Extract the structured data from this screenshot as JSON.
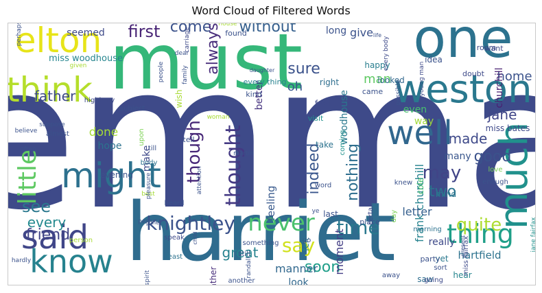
{
  "chart_data": {
    "type": "wordcloud",
    "title": "Word Cloud of Filtered Words",
    "colormap": "viridis",
    "words": [
      {
        "text": "emma",
        "weight": 1.0,
        "color": "#3e4a89",
        "rotate": false
      },
      {
        "text": "harriet",
        "weight": 0.64,
        "color": "#2f6c8e",
        "rotate": false
      },
      {
        "text": "must",
        "weight": 0.6,
        "color": "#35b779",
        "rotate": false
      },
      {
        "text": "one",
        "weight": 0.42,
        "color": "#2c728e",
        "rotate": false
      },
      {
        "text": "weston",
        "weight": 0.36,
        "color": "#2a788e",
        "rotate": false
      },
      {
        "text": "much",
        "weight": 0.34,
        "color": "#21918c",
        "rotate": true
      },
      {
        "text": "elton",
        "weight": 0.3,
        "color": "#e7e419",
        "rotate": false
      },
      {
        "text": "think",
        "weight": 0.3,
        "color": "#b5de2b",
        "rotate": false
      },
      {
        "text": "know",
        "weight": 0.3,
        "color": "#26828e",
        "rotate": false
      },
      {
        "text": "said",
        "weight": 0.28,
        "color": "#404688",
        "rotate": false
      },
      {
        "text": "might",
        "weight": 0.27,
        "color": "#2d718e",
        "rotate": false
      },
      {
        "text": "well",
        "weight": 0.25,
        "color": "#31678e",
        "rotate": false
      },
      {
        "text": "little",
        "weight": 0.24,
        "color": "#5ec962",
        "rotate": true
      },
      {
        "text": "thing",
        "weight": 0.2,
        "color": "#1f9f88",
        "rotate": false
      },
      {
        "text": "never",
        "weight": 0.2,
        "color": "#4ac16d",
        "rotate": false
      },
      {
        "text": "time",
        "weight": 0.18,
        "color": "#2a788e",
        "rotate": false
      },
      {
        "text": "quite",
        "weight": 0.17,
        "color": "#addc30",
        "rotate": false
      },
      {
        "text": "knightley",
        "weight": 0.16,
        "color": "#3b528b",
        "rotate": false
      },
      {
        "text": "thought",
        "weight": 0.15,
        "color": "#443983",
        "rotate": true
      },
      {
        "text": "though",
        "weight": 0.15,
        "color": "#482878",
        "rotate": true
      },
      {
        "text": "good",
        "weight": 0.15,
        "color": "#3b528b",
        "rotate": false
      },
      {
        "text": "say",
        "weight": 0.15,
        "color": "#d0e11c",
        "rotate": false
      },
      {
        "text": "may",
        "weight": 0.14,
        "color": "#414487",
        "rotate": false
      },
      {
        "text": "first",
        "weight": 0.13,
        "color": "#482475",
        "rotate": false
      },
      {
        "text": "without",
        "weight": 0.13,
        "color": "#355f8d",
        "rotate": false
      },
      {
        "text": "come",
        "weight": 0.13,
        "color": "#3b528b",
        "rotate": false
      },
      {
        "text": "always",
        "weight": 0.13,
        "color": "#472c7a",
        "rotate": true
      },
      {
        "text": "indeed",
        "weight": 0.12,
        "color": "#39568c",
        "rotate": true
      },
      {
        "text": "nothing",
        "weight": 0.12,
        "color": "#2e6e8e",
        "rotate": true
      },
      {
        "text": "father",
        "weight": 0.12,
        "color": "#3e4a89",
        "rotate": false
      },
      {
        "text": "see",
        "weight": 0.12,
        "color": "#2a788e",
        "rotate": false
      },
      {
        "text": "friend",
        "weight": 0.12,
        "color": "#414487",
        "rotate": false
      },
      {
        "text": "every",
        "weight": 0.11,
        "color": "#23898e",
        "rotate": false
      },
      {
        "text": "soon",
        "weight": 0.11,
        "color": "#1f9e89",
        "rotate": false
      },
      {
        "text": "sure",
        "weight": 0.11,
        "color": "#3b528b",
        "rotate": false
      },
      {
        "text": "jane",
        "weight": 0.1,
        "color": "#404688",
        "rotate": false
      },
      {
        "text": "made",
        "weight": 0.1,
        "color": "#3e4989",
        "rotate": false
      },
      {
        "text": "great",
        "weight": 0.1,
        "color": "#26828e",
        "rotate": false
      },
      {
        "text": "frank churchill",
        "weight": 0.09,
        "color": "#26828e",
        "rotate": true
      },
      {
        "text": "moment",
        "weight": 0.09,
        "color": "#433e85",
        "rotate": true
      },
      {
        "text": "feeling",
        "weight": 0.08,
        "color": "#38598c",
        "rotate": true
      },
      {
        "text": "miss woodhouse",
        "weight": 0.08,
        "color": "#25858e",
        "rotate": false
      },
      {
        "text": "seemed",
        "weight": 0.08,
        "color": "#3e4a89",
        "rotate": false
      },
      {
        "text": "two",
        "weight": 0.09,
        "color": "#2c728e",
        "rotate": false
      },
      {
        "text": "home",
        "weight": 0.08,
        "color": "#3b528b",
        "rotate": false
      },
      {
        "text": "letter",
        "weight": 0.08,
        "color": "#355f8d",
        "rotate": false
      },
      {
        "text": "hartfield",
        "weight": 0.07,
        "color": "#2c728e",
        "rotate": false
      },
      {
        "text": "really",
        "weight": 0.07,
        "color": "#3e4a89",
        "rotate": false
      },
      {
        "text": "manner",
        "weight": 0.07,
        "color": "#31688e",
        "rotate": false
      },
      {
        "text": "hope",
        "weight": 0.07,
        "color": "#2c728e",
        "rotate": false
      },
      {
        "text": "done",
        "weight": 0.07,
        "color": "#a5db36",
        "rotate": false
      },
      {
        "text": "oh",
        "weight": 0.07,
        "color": "#39568c",
        "rotate": false
      },
      {
        "text": "man",
        "weight": 0.07,
        "color": "#5ec962",
        "rotate": false
      },
      {
        "text": "give",
        "weight": 0.06,
        "color": "#3b528b",
        "rotate": false
      },
      {
        "text": "long",
        "weight": 0.06,
        "color": "#3b528b",
        "rotate": false
      },
      {
        "text": "woodhouse",
        "weight": 0.06,
        "color": "#2a788e",
        "rotate": true
      },
      {
        "text": "make",
        "weight": 0.06,
        "color": "#3e4989",
        "rotate": true
      },
      {
        "text": "even",
        "weight": 0.06,
        "color": "#48c16e",
        "rotate": false
      },
      {
        "text": "way",
        "weight": 0.06,
        "color": "#a0da39",
        "rotate": false
      },
      {
        "text": "many",
        "weight": 0.06,
        "color": "#39568c",
        "rotate": false
      },
      {
        "text": "look",
        "weight": 0.06,
        "color": "#31688e",
        "rotate": false
      },
      {
        "text": "better",
        "weight": 0.06,
        "color": "#46337f",
        "rotate": true
      },
      {
        "text": "churchill",
        "weight": 0.05,
        "color": "#481f70",
        "rotate": true
      },
      {
        "text": "miss bates",
        "weight": 0.05,
        "color": "#3e4989",
        "rotate": false
      },
      {
        "text": "mind",
        "weight": 0.05,
        "color": "#2a788e",
        "rotate": false
      },
      {
        "text": "happy",
        "weight": 0.05,
        "color": "#287d8e",
        "rotate": false
      },
      {
        "text": "looked",
        "weight": 0.05,
        "color": "#31688e",
        "rotate": false
      },
      {
        "text": "wish",
        "weight": 0.05,
        "color": "#a8db34",
        "rotate": true
      },
      {
        "text": "felt",
        "weight": 0.05,
        "color": "#25848e",
        "rotate": true
      },
      {
        "text": "rather",
        "weight": 0.05,
        "color": "#472d7b",
        "rotate": true
      },
      {
        "text": "cole",
        "weight": 0.05,
        "color": "#48c16e",
        "rotate": true
      },
      {
        "text": "yet",
        "weight": 0.05,
        "color": "#2a788e",
        "rotate": false
      },
      {
        "text": "hear",
        "weight": 0.05,
        "color": "#25858e",
        "rotate": false
      },
      {
        "text": "saw",
        "weight": 0.05,
        "color": "#2e6e8e",
        "rotate": false
      },
      {
        "text": "feel",
        "weight": 0.05,
        "color": "#3e4a89",
        "rotate": false
      },
      {
        "text": "take",
        "weight": 0.05,
        "color": "#2c728e",
        "rotate": false
      },
      {
        "text": "evening",
        "weight": 0.05,
        "color": "#3b528b",
        "rotate": false
      },
      {
        "text": "last",
        "weight": 0.05,
        "color": "#3b528b",
        "rotate": false
      },
      {
        "text": "right",
        "weight": 0.05,
        "color": "#2e6e8e",
        "rotate": false
      },
      {
        "text": "idea",
        "weight": 0.05,
        "color": "#3b528b",
        "rotate": false
      },
      {
        "text": "doubt",
        "weight": 0.05,
        "color": "#3e4a89",
        "rotate": false
      },
      {
        "text": "want",
        "weight": 0.04,
        "color": "#3e4a89",
        "rotate": false
      },
      {
        "text": "room",
        "weight": 0.04,
        "color": "#3e4a89",
        "rotate": false
      },
      {
        "text": "found",
        "weight": 0.04,
        "color": "#3b528b",
        "rotate": false
      },
      {
        "text": "kind",
        "weight": 0.04,
        "color": "#3b528b",
        "rotate": false
      },
      {
        "text": "came",
        "weight": 0.04,
        "color": "#3b528b",
        "rotate": false
      },
      {
        "text": "visit",
        "weight": 0.04,
        "color": "#21918c",
        "rotate": false
      },
      {
        "text": "every thing",
        "weight": 0.04,
        "color": "#26828e",
        "rotate": false
      },
      {
        "text": "highbury",
        "weight": 0.04,
        "color": "#3e4a89",
        "rotate": false
      },
      {
        "text": "subject",
        "weight": 0.04,
        "color": "#3b528b",
        "rotate": false
      },
      {
        "text": "upon",
        "weight": 0.04,
        "color": "#7ad151",
        "rotate": true
      },
      {
        "text": "tell",
        "weight": 0.04,
        "color": "#3b528b",
        "rotate": false
      },
      {
        "text": "till",
        "weight": 0.04,
        "color": "#3b528b",
        "rotate": false
      },
      {
        "text": "body",
        "weight": 0.04,
        "color": "#2c728e",
        "rotate": false
      },
      {
        "text": "heard",
        "weight": 0.04,
        "color": "#3b528b",
        "rotate": false
      },
      {
        "text": "speak",
        "weight": 0.04,
        "color": "#3e4a89",
        "rotate": false
      },
      {
        "text": "least",
        "weight": 0.04,
        "color": "#2c728e",
        "rotate": false
      },
      {
        "text": "still",
        "weight": 0.04,
        "color": "#3b528b",
        "rotate": false
      },
      {
        "text": "another",
        "weight": 0.04,
        "color": "#3b528b",
        "rotate": false
      },
      {
        "text": "something",
        "weight": 0.04,
        "color": "#3b528b",
        "rotate": false
      },
      {
        "text": "go",
        "weight": 0.04,
        "color": "#3b528b",
        "rotate": false
      },
      {
        "text": "place",
        "weight": 0.04,
        "color": "#3b528b",
        "rotate": false
      },
      {
        "text": "morning",
        "weight": 0.04,
        "color": "#2c728e",
        "rotate": false
      },
      {
        "text": "party",
        "weight": 0.04,
        "color": "#3b528b",
        "rotate": false
      },
      {
        "text": "sort",
        "weight": 0.04,
        "color": "#3b528b",
        "rotate": false
      },
      {
        "text": "away",
        "weight": 0.04,
        "color": "#3b528b",
        "rotate": false
      },
      {
        "text": "going",
        "weight": 0.04,
        "color": "#3e4a89",
        "rotate": false
      },
      {
        "text": "word",
        "weight": 0.04,
        "color": "#3b528b",
        "rotate": false
      },
      {
        "text": "coming",
        "weight": 0.04,
        "color": "#21918c",
        "rotate": true
      },
      {
        "text": "love",
        "weight": 0.04,
        "color": "#7ad151",
        "rotate": false
      },
      {
        "text": "enough",
        "weight": 0.04,
        "color": "#3b528b",
        "rotate": false
      },
      {
        "text": "knew",
        "weight": 0.04,
        "color": "#3b528b",
        "rotate": false
      },
      {
        "text": "certainly",
        "weight": 0.04,
        "color": "#3e4a89",
        "rotate": true
      },
      {
        "text": "day",
        "weight": 0.04,
        "color": "#7ad151",
        "rotate": true
      },
      {
        "text": "jane fairfax",
        "weight": 0.04,
        "color": "#21918c",
        "rotate": true
      },
      {
        "text": "miss fairfax",
        "weight": 0.04,
        "color": "#3e4a89",
        "rotate": true
      },
      {
        "text": "young man",
        "weight": 0.04,
        "color": "#3e4a89",
        "rotate": true
      },
      {
        "text": "every body",
        "weight": 0.04,
        "color": "#3e4a89",
        "rotate": true
      },
      {
        "text": "almost",
        "weight": 0.04,
        "color": "#3b528b",
        "rotate": false
      },
      {
        "text": "dear",
        "weight": 0.04,
        "color": "#3b528b",
        "rotate": false
      },
      {
        "text": "best",
        "weight": 0.04,
        "color": "#a5db36",
        "rotate": false
      },
      {
        "text": "perry",
        "weight": 0.03,
        "color": "#3b528b",
        "rotate": false
      },
      {
        "text": "family",
        "weight": 0.03,
        "color": "#3b528b",
        "rotate": true
      },
      {
        "text": "people",
        "weight": 0.03,
        "color": "#3b528b",
        "rotate": true
      },
      {
        "text": "carriage",
        "weight": 0.03,
        "color": "#3e4a89",
        "rotate": true
      },
      {
        "text": "perhaps",
        "weight": 0.03,
        "color": "#3b528b",
        "rotate": true
      },
      {
        "text": "believe",
        "weight": 0.03,
        "color": "#3b528b",
        "rotate": false
      },
      {
        "text": "given",
        "weight": 0.03,
        "color": "#a8db34",
        "rotate": false
      },
      {
        "text": "suppose",
        "weight": 0.03,
        "color": "#3b528b",
        "rotate": false
      },
      {
        "text": "often",
        "weight": 0.03,
        "color": "#3b528b",
        "rotate": false
      },
      {
        "text": "person",
        "weight": 0.03,
        "color": "#a8db34",
        "rotate": false
      },
      {
        "text": "hardly",
        "weight": 0.03,
        "color": "#3b528b",
        "rotate": false
      },
      {
        "text": "randall",
        "weight": 0.03,
        "color": "#3b528b",
        "rotate": true
      },
      {
        "text": "attention",
        "weight": 0.03,
        "color": "#3b528b",
        "rotate": true
      },
      {
        "text": "pleasure",
        "weight": 0.03,
        "color": "#3b528b",
        "rotate": true
      },
      {
        "text": "possible",
        "weight": 0.03,
        "color": "#3b528b",
        "rotate": true
      },
      {
        "text": "house",
        "weight": 0.03,
        "color": "#a8db34",
        "rotate": false
      },
      {
        "text": "spirit",
        "weight": 0.03,
        "color": "#3b528b",
        "rotate": true
      },
      {
        "text": "ye",
        "weight": 0.03,
        "color": "#3b528b",
        "rotate": false
      },
      {
        "text": "present",
        "weight": 0.03,
        "color": "#3b528b",
        "rotate": true
      },
      {
        "text": "life",
        "weight": 0.03,
        "color": "#3b528b",
        "rotate": false
      },
      {
        "text": "daughter",
        "weight": 0.02,
        "color": "#3b528b",
        "rotate": false
      },
      {
        "text": "gone",
        "weight": 0.02,
        "color": "#3b528b",
        "rotate": false
      },
      {
        "text": "child",
        "weight": 0.02,
        "color": "#3b528b",
        "rotate": true
      },
      {
        "text": "woman",
        "weight": 0.02,
        "color": "#a8db34",
        "rotate": false
      },
      {
        "text": "martin",
        "weight": 0.02,
        "color": "#3b528b",
        "rotate": false
      }
    ]
  }
}
